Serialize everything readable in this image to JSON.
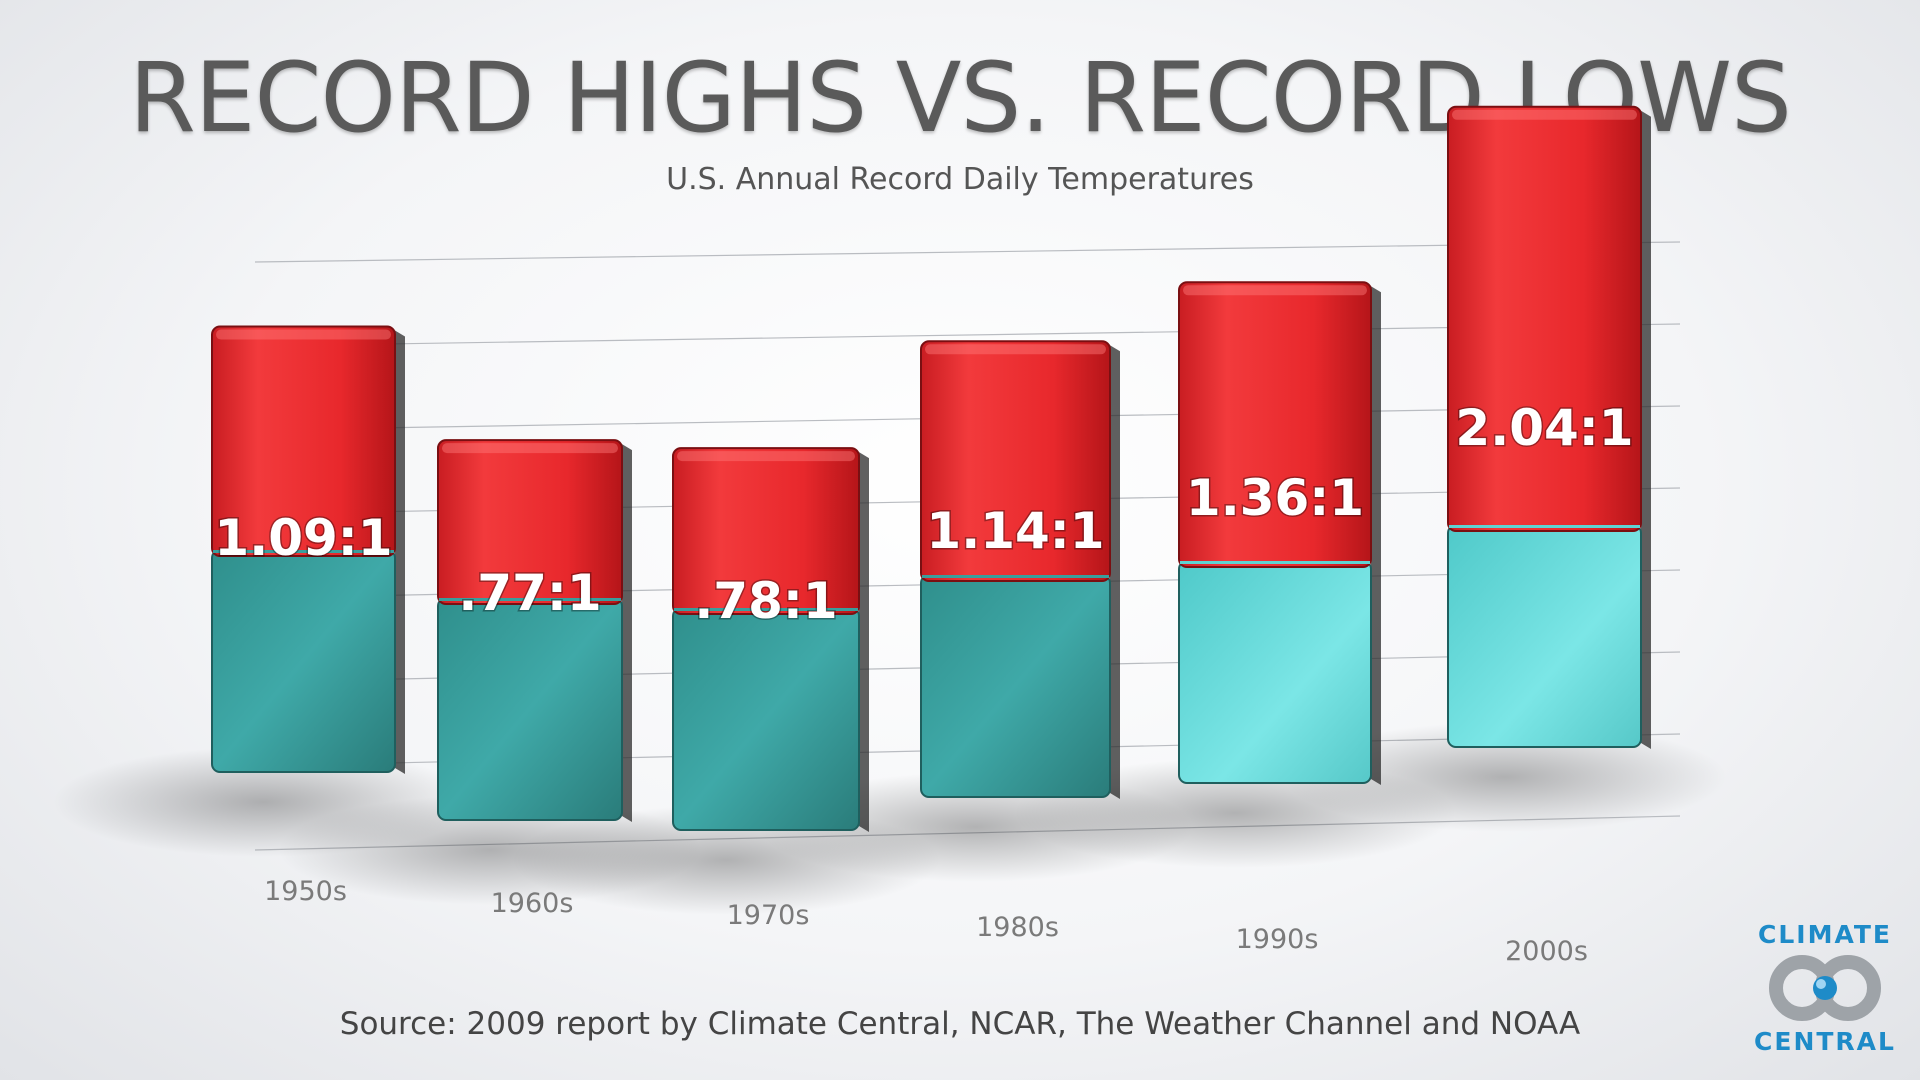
{
  "header": {
    "title": "RECORD HIGHS VS. RECORD LOWS",
    "subtitle": "U.S. Annual Record Daily Temperatures"
  },
  "footer": {
    "source": "Source: 2009 report by Climate Central, NCAR, The Weather Channel and NOAA"
  },
  "logo": {
    "line1": "CLIMATE",
    "line2": "CENTRAL"
  },
  "colors": {
    "highs": "#e8282c",
    "lows": "#3aa6a6",
    "logo_blue": "#1e8bc8"
  },
  "chart_data": {
    "type": "bar",
    "stacked": true,
    "categories": [
      "1950s",
      "1960s",
      "1970s",
      "1980s",
      "1990s",
      "2000s"
    ],
    "series": [
      {
        "values": [
          1.09,
          0.77,
          0.78,
          1.14,
          1.36,
          2.04
        ]
      },
      {
        "values": [
          1,
          1,
          1,
          1,
          1,
          1
        ]
      }
    ],
    "data_labels": [
      "1.09:1",
      ".77:1",
      ".78:1",
      "1.14:1",
      "1.36:1",
      "2.04:1"
    ],
    "grid": true
  }
}
